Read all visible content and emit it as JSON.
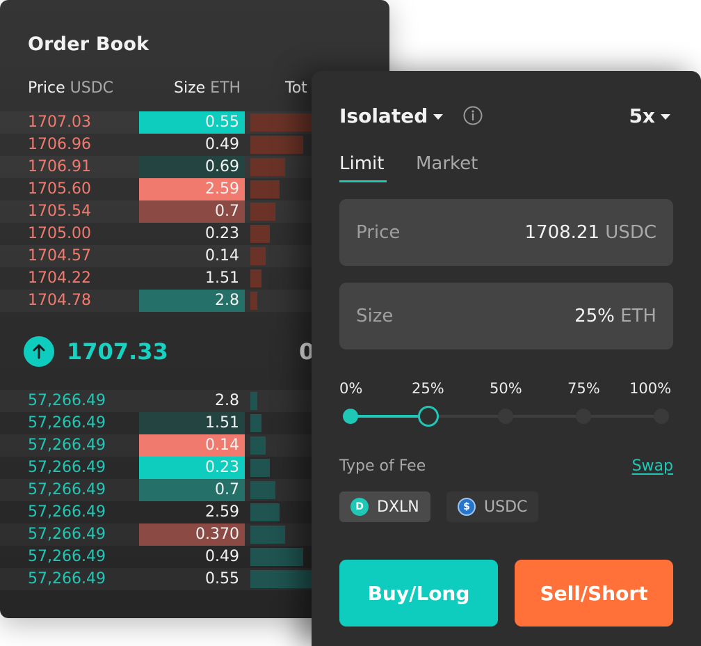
{
  "colors": {
    "ask": "#f07a6e",
    "bid": "#1fc8b6",
    "accent": "#0ecdbf",
    "sell": "#ff7138",
    "panel": "#2e2e2e",
    "field": "#444444"
  },
  "order_book": {
    "title": "Order Book",
    "columns": [
      {
        "label": "Price",
        "unit": "USDC"
      },
      {
        "label": "Size",
        "unit": "ETH"
      },
      {
        "label": "Tot",
        "unit": ""
      }
    ],
    "asks": [
      {
        "price": "1707.03",
        "size": "0.55",
        "depth": 0.95,
        "highlight": "teal"
      },
      {
        "price": "1706.96",
        "size": "0.49",
        "depth": 0.76,
        "highlight": "none"
      },
      {
        "price": "1706.91",
        "size": "0.69",
        "depth": 0.5,
        "highlight": "dark-teal"
      },
      {
        "price": "1705.60",
        "size": "2.59",
        "depth": 0.42,
        "highlight": "salmon"
      },
      {
        "price": "1705.54",
        "size": "0.7",
        "depth": 0.36,
        "highlight": "dark-red"
      },
      {
        "price": "1705.00",
        "size": "0.23",
        "depth": 0.28,
        "highlight": "none"
      },
      {
        "price": "1704.57",
        "size": "0.14",
        "depth": 0.22,
        "highlight": "none"
      },
      {
        "price": "1704.22",
        "size": "1.51",
        "depth": 0.16,
        "highlight": "none"
      },
      {
        "price": "1704.78",
        "size": "2.8",
        "depth": 0.1,
        "highlight": "mid-teal"
      }
    ],
    "mid": {
      "price": "1707.33",
      "right": "0"
    },
    "bids": [
      {
        "price": "57,266.49",
        "size": "2.8",
        "depth": 0.1,
        "highlight": "none"
      },
      {
        "price": "57,266.49",
        "size": "1.51",
        "depth": 0.16,
        "highlight": "dark-teal"
      },
      {
        "price": "57,266.49",
        "size": "0.14",
        "depth": 0.22,
        "highlight": "salmon"
      },
      {
        "price": "57,266.49",
        "size": "0.23",
        "depth": 0.28,
        "highlight": "teal"
      },
      {
        "price": "57,266.49",
        "size": "0.7",
        "depth": 0.36,
        "highlight": "mid-teal"
      },
      {
        "price": "57,266.49",
        "size": "2.59",
        "depth": 0.42,
        "highlight": "none"
      },
      {
        "price": "57,266.49",
        "size": "0.370",
        "depth": 0.5,
        "highlight": "dark-red"
      },
      {
        "price": "57,266.49",
        "size": "0.49",
        "depth": 0.76,
        "highlight": "none"
      },
      {
        "price": "57,266.49",
        "size": "0.55",
        "depth": 0.95,
        "highlight": "none"
      }
    ]
  },
  "trade": {
    "margin_mode": "Isolated",
    "leverage": "5x",
    "tabs": [
      {
        "label": "Limit",
        "active": true
      },
      {
        "label": "Market",
        "active": false
      }
    ],
    "price": {
      "label": "Price",
      "value": "1708.21",
      "unit": "USDC"
    },
    "size": {
      "label": "Size",
      "value": "25%",
      "unit": "ETH"
    },
    "slider": {
      "stops": [
        "0%",
        "25%",
        "50%",
        "75%",
        "100%"
      ],
      "value": 0.25
    },
    "fee": {
      "label": "Type of Fee",
      "swap_label": "Swap",
      "options": [
        {
          "label": "DXLN",
          "icon": "dxln-icon",
          "icon_text": "D",
          "selected": true
        },
        {
          "label": "USDC",
          "icon": "usdc-icon",
          "icon_text": "$",
          "selected": false
        }
      ]
    },
    "buy_label": "Buy/Long",
    "sell_label": "Sell/Short"
  }
}
